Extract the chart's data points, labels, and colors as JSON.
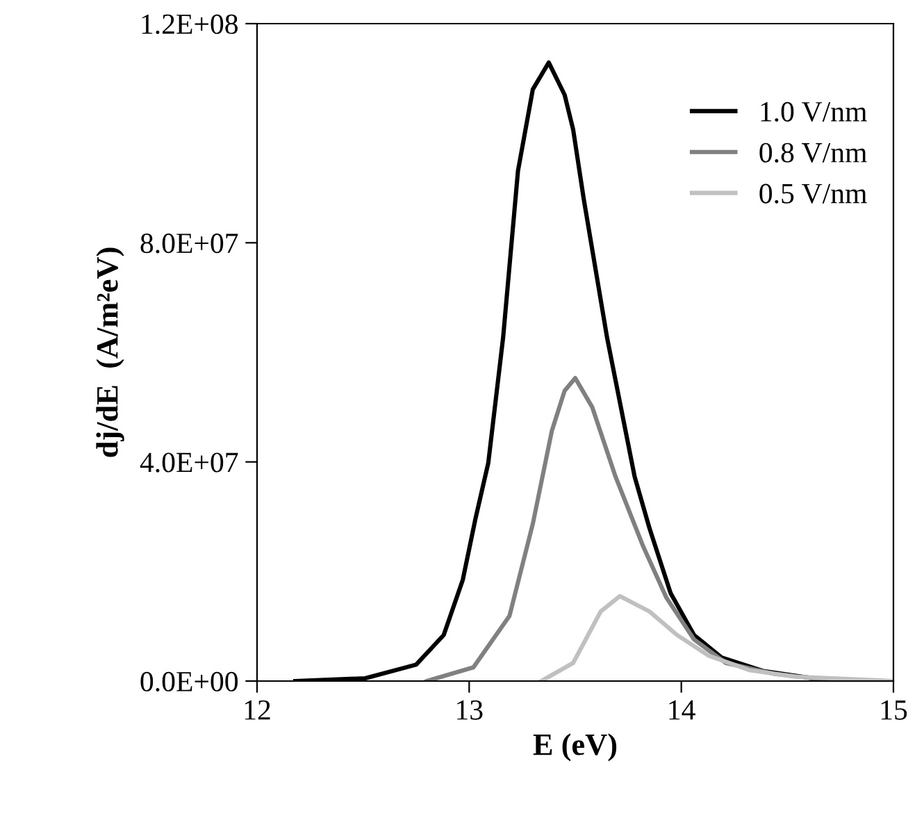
{
  "chart_data": {
    "type": "line",
    "xlabel": "E (eV)",
    "ylabel": "dj/dE  (A/m²eV)",
    "xlim": [
      12,
      15
    ],
    "xticks": [
      12,
      13,
      14,
      15
    ],
    "ylim": [
      0,
      120000000
    ],
    "yticks": [
      {
        "value": 0,
        "label": "0.0E+00"
      },
      {
        "value": 40000000,
        "label": "4.0E+07"
      },
      {
        "value": 80000000,
        "label": "8.0E+07"
      },
      {
        "value": 120000000,
        "label": "1.2E+08"
      }
    ],
    "legend": "right",
    "grid": false,
    "marker": "none",
    "line_style": "solid",
    "series": [
      {
        "name": "1.0 V/nm",
        "color": "#000000",
        "x": [
          12.18,
          12.51,
          12.75,
          12.88,
          12.97,
          13.03,
          13.09,
          13.16,
          13.23,
          13.3,
          13.375,
          13.45,
          13.49,
          13.54,
          13.65,
          13.78,
          13.85,
          13.95,
          14.06,
          14.19,
          14.39,
          14.57,
          14.72
        ],
        "values": [
          0,
          500000,
          3000000,
          8400000,
          18500000,
          29700000,
          39800000,
          62700000,
          93100000,
          108000000,
          112900000,
          107000000,
          100700000,
          88000000,
          62700000,
          37300000,
          27900000,
          16000000,
          8400000,
          4300000,
          1800000,
          800000,
          0
        ]
      },
      {
        "name": "0.8 V/nm",
        "color": "#808080",
        "x": [
          12.8,
          13.02,
          13.19,
          13.3,
          13.39,
          13.45,
          13.5,
          13.58,
          13.69,
          13.82,
          13.93,
          14.06,
          14.21,
          14.44,
          14.74
        ],
        "values": [
          0,
          2500000,
          11900000,
          28700000,
          45700000,
          53000000,
          55300000,
          50000000,
          37300000,
          24600000,
          15200000,
          7600000,
          3300000,
          1300000,
          0
        ]
      },
      {
        "name": "0.5 V/nm",
        "color": "#c0c0c0",
        "x": [
          13.34,
          13.49,
          13.62,
          13.71,
          13.85,
          13.98,
          14.13,
          14.32,
          14.54,
          15.0
        ],
        "values": [
          0,
          3300000,
          12700000,
          15500000,
          12700000,
          8400000,
          4600000,
          2000000,
          800000,
          0
        ]
      }
    ]
  }
}
